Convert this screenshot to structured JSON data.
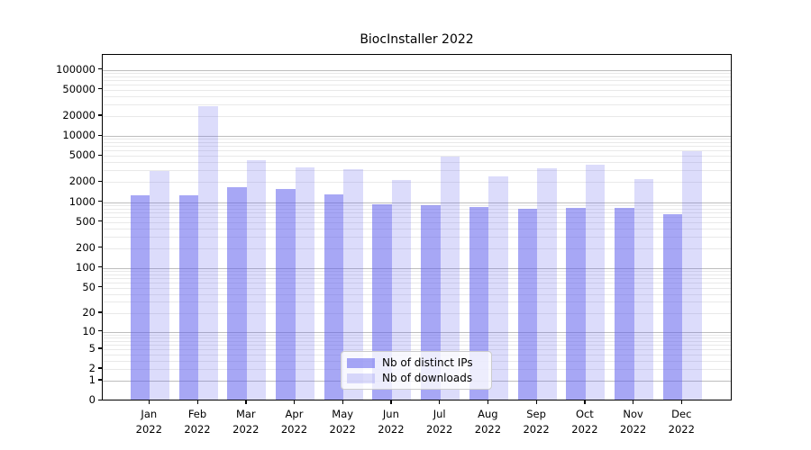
{
  "chart_data": {
    "type": "bar",
    "title": "BiocInstaller 2022",
    "categories": [
      "Jan",
      "Feb",
      "Mar",
      "Apr",
      "May",
      "Jun",
      "Jul",
      "Aug",
      "Sep",
      "Oct",
      "Nov",
      "Dec"
    ],
    "category_year": "2022",
    "series": [
      {
        "name": "Nb of distinct IPs",
        "color": "rgba(94,94,237,0.55)",
        "color_hex_on_white": "#a6a6f5",
        "values": [
          1200,
          1190,
          1600,
          1475,
          1220,
          870,
          845,
          800,
          750,
          770,
          760,
          620
        ]
      },
      {
        "name": "Nb of downloads",
        "color": "rgba(94,94,237,0.22)",
        "color_hex_on_white": "#dadafa",
        "values": [
          2800,
          26500,
          4100,
          3100,
          2950,
          2020,
          4600,
          2320,
          3080,
          3500,
          2100,
          5500
        ]
      }
    ],
    "xlabel": "",
    "ylabel": "",
    "y_ticks": [
      0,
      1,
      2,
      5,
      10,
      20,
      50,
      100,
      200,
      500,
      1000,
      2000,
      5000,
      10000,
      20000,
      50000,
      100000
    ],
    "y_scale": "log10(value+1)",
    "ylim": [
      0,
      100000
    ],
    "grid": {
      "on": true,
      "major_color": "#bdbdbd",
      "minor_color": "#e9e9e9"
    },
    "legend_position": "lower center",
    "axis_color": "#000000",
    "background_color": "#ffffff"
  }
}
